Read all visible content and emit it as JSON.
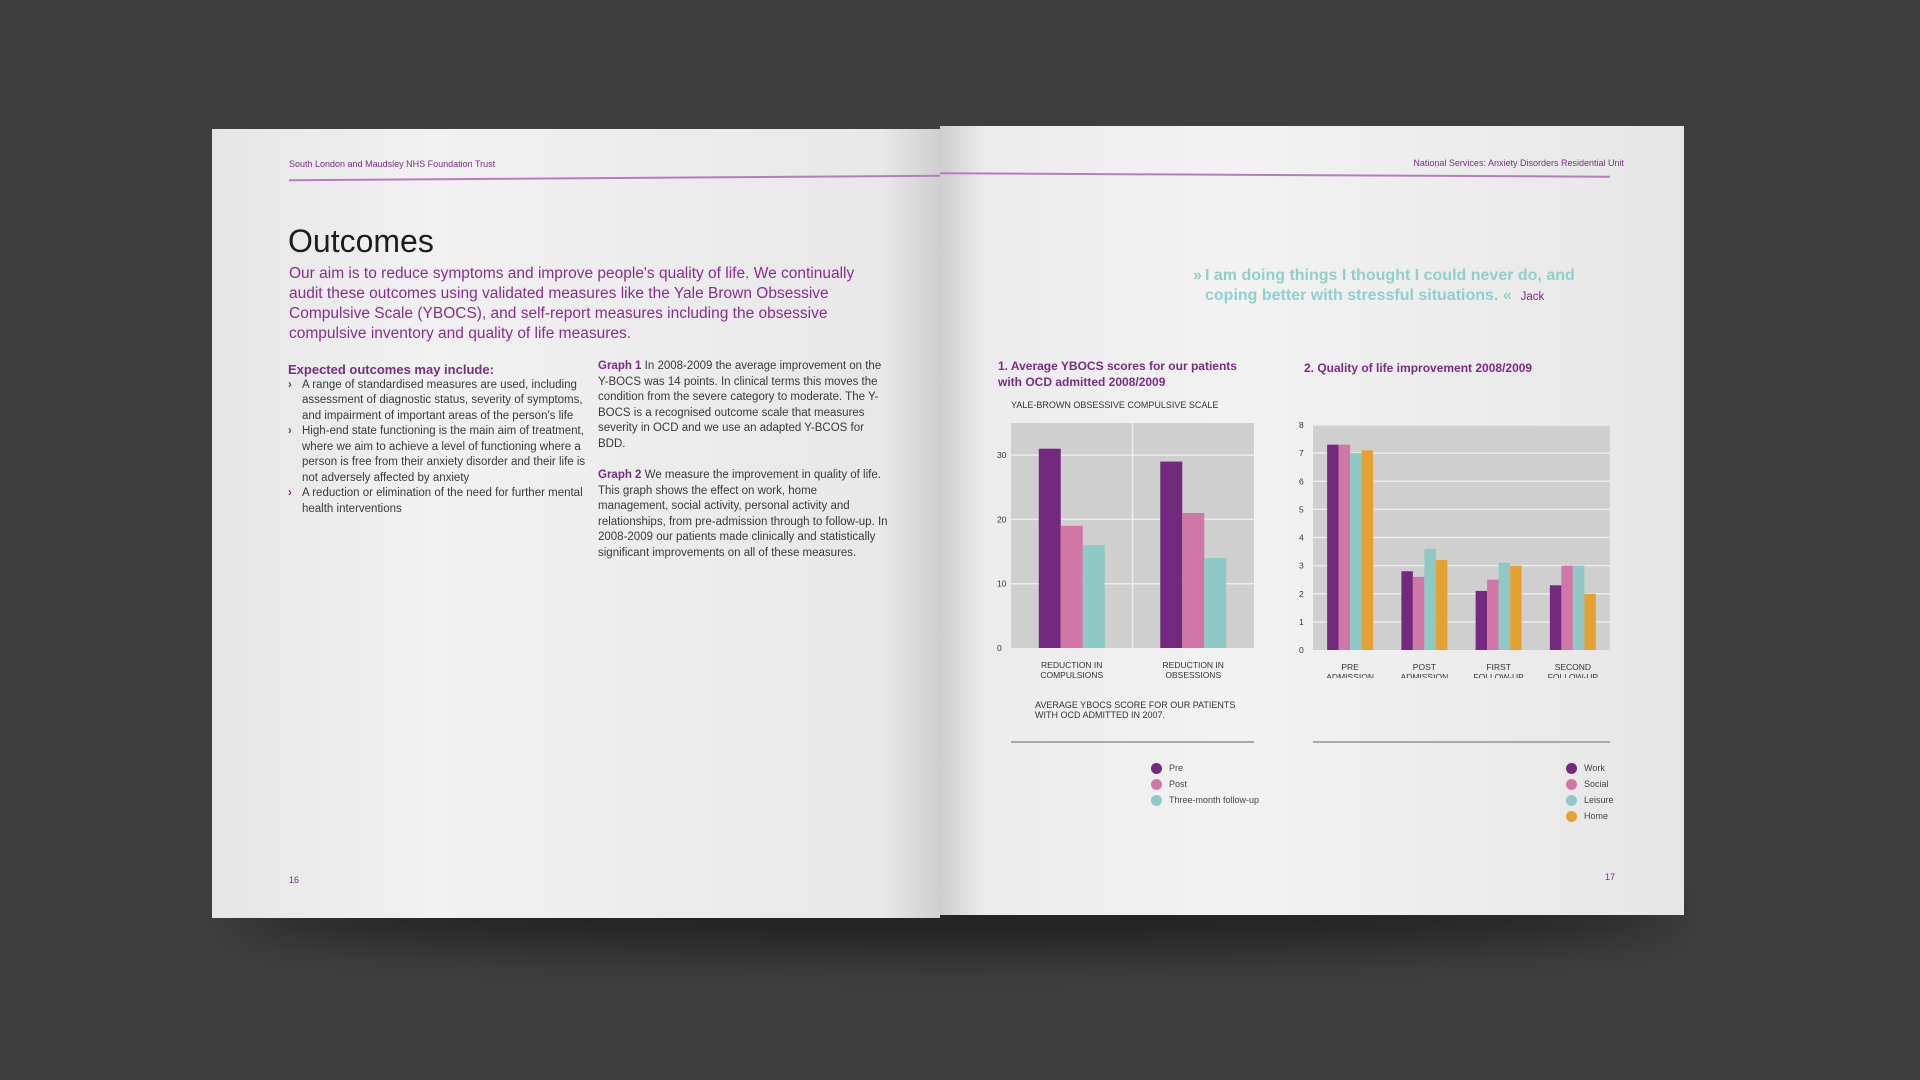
{
  "left_page": {
    "header": "South London and Maudsley NHS Foundation Trust",
    "title": "Outcomes",
    "intro": "Our aim is to reduce symptoms and improve people's quality of life. We continually audit these outcomes using validated measures like the Yale Brown Obsessive Compulsive Scale (YBOCS), and self-report measures including the obsessive compulsive inventory and quality of life measures.",
    "expected_heading": "Expected outcomes may include:",
    "bullets": [
      "A range of standardised measures are used, including assessment of diagnostic status, severity of symptoms, and impairment of important areas of the person's life",
      "High-end state functioning is the main aim of treatment, where we aim to achieve a level of functioning where a person is free from their anxiety disorder and their life is not adversely affected by anxiety",
      "A reduction or elimination of the need for further mental health interventions"
    ],
    "bullet_icon": "chevron-right-icon",
    "graph1_label": "Graph 1",
    "graph1_text": "In 2008-2009 the average improvement on the Y-BOCS was 14 points. In clinical terms this moves the condition from the severe category to moderate. The Y-BOCS is a recognised outcome scale that measures severity in OCD and we use an adapted Y-BCOS for BDD.",
    "graph2_label": "Graph 2",
    "graph2_text": "We measure the improvement in quality of life. This graph shows the effect on work, home management, social activity, personal activity and relationships, from pre-admission through to follow-up. In 2008-2009 our patients made clinically and statistically significant improvements on all of these measures.",
    "page_number": "16"
  },
  "right_page": {
    "header": "National Services: Anxiety Disorders Residential Unit",
    "quote_open": "»",
    "quote": "I am doing things I thought I could never do, and coping better with stressful situations.",
    "quote_close": "«",
    "quote_author": "Jack",
    "page_number": "17"
  },
  "colors": {
    "brand_purple": "#7a2c85",
    "accent_teal": "#8fd0cb",
    "plot_bg": "#cfcfcf"
  },
  "chart_data": [
    {
      "type": "bar",
      "title": "1.  Average YBOCS scores for our patients with OCD admitted 2008/2009",
      "ylabel": "YALE-BROWN OBSESSIVE COMPULSIVE SCALE",
      "note": "AVERAGE YBOCS SCORE FOR OUR PATIENTS WITH OCD ADMITTED IN 2007.",
      "categories": [
        "REDUCTION IN COMPULSIONS",
        "REDUCTION IN OBSESSIONS"
      ],
      "ylim": [
        0,
        35
      ],
      "yticks": [
        0,
        10,
        20,
        30
      ],
      "grid": true,
      "legend": "bottom-right",
      "series": [
        {
          "name": "Pre",
          "color": "#732a7e",
          "values": [
            31,
            29
          ]
        },
        {
          "name": "Post",
          "color": "#d077a8",
          "values": [
            19,
            21
          ]
        },
        {
          "name": "Three-month follow-up",
          "color": "#8ec9c6",
          "values": [
            16,
            14
          ]
        }
      ]
    },
    {
      "type": "bar",
      "title": "2.  Quality of life improvement 2008/2009",
      "categories": [
        "PRE ADMISSION",
        "POST ADMISSION",
        "FIRST FOLLOW-UP",
        "SECOND FOLLOW-UP"
      ],
      "ylim": [
        0,
        8
      ],
      "yticks": [
        0,
        1,
        2,
        3,
        4,
        5,
        6,
        7,
        8
      ],
      "grid": true,
      "legend": "bottom-right",
      "series": [
        {
          "name": "Work",
          "color": "#732a7e",
          "values": [
            7.3,
            2.8,
            2.1,
            2.3
          ]
        },
        {
          "name": "Social",
          "color": "#d077a8",
          "values": [
            7.3,
            2.6,
            2.5,
            3.0
          ]
        },
        {
          "name": "Leisure",
          "color": "#8ec9c6",
          "values": [
            7.0,
            3.6,
            3.1,
            3.0
          ]
        },
        {
          "name": "Home",
          "color": "#e4a234",
          "values": [
            7.1,
            3.2,
            3.0,
            2.0
          ]
        }
      ]
    }
  ]
}
